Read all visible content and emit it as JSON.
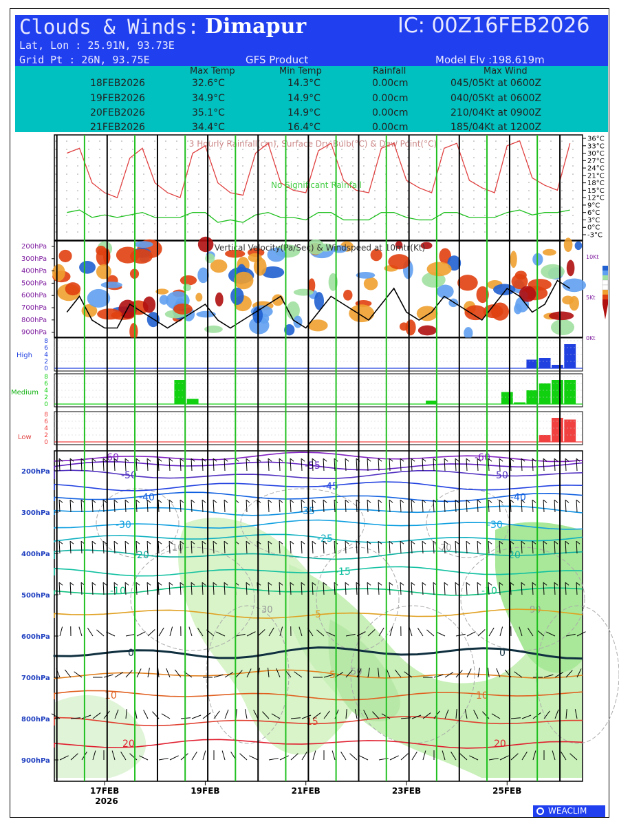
{
  "header": {
    "title_prefix": "Clouds & Winds:",
    "location": "Dimapur",
    "ic": "IC: 00Z16FEB2026",
    "latlon": "Lat, Lon : 25.91N, 93.73E",
    "grid": "Grid Pt   : 26N, 93.75E",
    "product": "GFS Product",
    "elevation": "Model Elv :198.619m"
  },
  "summary": {
    "columns": [
      "Max Temp",
      "Min Temp",
      "Rainfall",
      "Max Wind"
    ],
    "rows": [
      {
        "date": "18FEB2026",
        "max": "32.6°C",
        "min": "14.3°C",
        "rain": "0.00cm",
        "wind": "045/05Kt at 0600Z"
      },
      {
        "date": "19FEB2026",
        "max": "34.9°C",
        "min": "14.9°C",
        "rain": "0.00cm",
        "wind": "040/05Kt at 0600Z"
      },
      {
        "date": "20FEB2026",
        "max": "35.1°C",
        "min": "14.9°C",
        "rain": "0.00cm",
        "wind": "210/04Kt at 0900Z"
      },
      {
        "date": "21FEB2026",
        "max": "34.4°C",
        "min": "16.4°C",
        "rain": "0.00cm",
        "wind": "185/04Kt at 1200Z"
      }
    ]
  },
  "chart_data": [
    {
      "type": "line",
      "title": "3 Hourly Rainfall(cm), Surface Dry Bulb(°C) & Dew Point(°C)",
      "note": "No Significant Rainfall",
      "yticks": [
        "36°C",
        "33°C",
        "30°C",
        "27°C",
        "24°C",
        "21°C",
        "18°C",
        "15°C",
        "12°C",
        "9°C",
        "6°C",
        "3°C",
        "0°C",
        "-3°C"
      ],
      "ylim": [
        -3,
        36
      ],
      "x_days": [
        16.25,
        16.5,
        16.75,
        17,
        17.25,
        17.5,
        17.75,
        18,
        18.25,
        18.5,
        18.75,
        19,
        19.25,
        19.5,
        19.75,
        20,
        20.25,
        20.5,
        20.75,
        21,
        21.25,
        21.5,
        21.75,
        22,
        22.25,
        22.5,
        22.75,
        23,
        23.25,
        23.5,
        23.75,
        24,
        24.25,
        24.5,
        24.75,
        25,
        25.25,
        25.5,
        25.75,
        26,
        26.25
      ],
      "series": [
        {
          "name": "Dry Bulb",
          "color": "#e04040",
          "values": [
            30,
            32,
            18,
            14,
            12,
            28,
            32,
            18,
            14,
            12,
            30,
            33,
            18,
            14,
            13,
            30,
            34,
            18,
            15,
            14,
            31,
            34,
            19,
            15,
            14,
            32,
            34,
            19,
            16,
            14,
            32,
            34,
            19,
            16,
            14,
            33,
            35,
            20,
            17,
            15,
            34
          ]
        },
        {
          "name": "Dew Point",
          "color": "#20c020",
          "values": [
            6,
            7,
            4,
            5,
            4,
            5,
            6,
            4,
            4,
            4,
            6,
            6,
            2,
            3,
            2,
            5,
            6,
            4,
            4,
            3,
            6,
            6,
            3,
            3,
            3,
            6,
            6,
            4,
            3,
            3,
            6,
            6,
            4,
            4,
            4,
            6,
            7,
            5,
            6,
            6,
            7
          ]
        }
      ]
    },
    {
      "type": "heatmap",
      "title": "Vertical Velocity(Pa/Sec) & Windspeed at 10mtr(Kt)",
      "yticks": [
        "200hPa",
        "300hPa",
        "400hPa",
        "500hPa",
        "600hPa",
        "700hPa",
        "800hPa",
        "900hPa"
      ],
      "right_ticks": [
        "10Kt",
        "5Kt",
        "0Kt"
      ],
      "windspeed_kt": [
        3,
        5,
        2,
        1,
        1,
        4,
        3,
        2,
        1,
        2,
        3,
        4,
        2,
        1,
        2,
        3,
        4,
        5,
        2,
        1,
        3,
        5,
        4,
        3,
        2,
        4,
        6,
        3,
        2,
        3,
        5,
        4,
        3,
        2,
        4,
        6,
        5,
        3,
        4,
        7,
        6
      ]
    },
    {
      "type": "bar",
      "title": "High",
      "color": "#2040e0",
      "yticks": [
        "8",
        "6",
        "4",
        "2",
        "0"
      ],
      "ylim": [
        0,
        8
      ],
      "values": [
        0,
        0,
        0,
        0,
        0,
        0,
        0,
        0,
        0,
        0,
        0,
        0,
        0,
        0,
        0,
        0,
        0,
        0,
        0,
        0,
        0,
        0,
        0,
        0,
        0,
        0,
        0,
        0,
        0,
        0,
        0,
        0,
        0,
        0,
        0,
        0,
        0,
        2.5,
        3,
        1,
        7
      ]
    },
    {
      "type": "bar",
      "title": "Medium",
      "color": "#10d010",
      "yticks": [
        "8",
        "6",
        "4",
        "2",
        "0"
      ],
      "ylim": [
        0,
        8
      ],
      "values": [
        0,
        0,
        0,
        0,
        0,
        0,
        0,
        0,
        0,
        7,
        1.5,
        0,
        0,
        0,
        0,
        0,
        0,
        0,
        0,
        0,
        0,
        0,
        0,
        0,
        0,
        0,
        0,
        0,
        0,
        1,
        0,
        0,
        0,
        0,
        0,
        3.5,
        0.5,
        4,
        6,
        7,
        7
      ]
    },
    {
      "type": "bar",
      "title": "Low",
      "color": "#f04040",
      "yticks": [
        "8",
        "6",
        "4",
        "2",
        "0"
      ],
      "ylim": [
        0,
        8
      ],
      "values": [
        0,
        0,
        0,
        0,
        0,
        0,
        0,
        0,
        0,
        0,
        0,
        0,
        0,
        0,
        0,
        0,
        0,
        0,
        0,
        0,
        0,
        0,
        0,
        0,
        0,
        0,
        0,
        0,
        0,
        0,
        0,
        0,
        0,
        0,
        0,
        0,
        0,
        0,
        2,
        7,
        6.5
      ]
    },
    {
      "type": "contour",
      "title": "Temperature (°C), Relative Humidity & Winds",
      "yticks": [
        "200hPa",
        "300hPa",
        "400hPa",
        "500hPa",
        "600hPa",
        "700hPa",
        "800hPa",
        "900hPa"
      ],
      "xticks": [
        "17FEB",
        "19FEB",
        "21FEB",
        "23FEB",
        "25FEB"
      ],
      "year": "2026",
      "isotherms": [
        {
          "label": "-60",
          "color": "#8020c0"
        },
        {
          "label": "-55",
          "color": "#6020c0"
        },
        {
          "label": "-50",
          "color": "#5030c0"
        },
        {
          "label": "-45",
          "color": "#2040e0"
        },
        {
          "label": "-40",
          "color": "#1060e0"
        },
        {
          "label": "-35",
          "color": "#1090e0"
        },
        {
          "label": "-30",
          "color": "#10a0e0"
        },
        {
          "label": "-25",
          "color": "#10b0c0"
        },
        {
          "label": "-20",
          "color": "#10b0a0"
        },
        {
          "label": "-15",
          "color": "#10c0a0"
        },
        {
          "label": "-10",
          "color": "#10c080"
        },
        {
          "label": "-5",
          "color": "#e0a020"
        },
        {
          "label": "0",
          "color": "#103040"
        },
        {
          "label": "5",
          "color": "#e08020"
        },
        {
          "label": "10",
          "color": "#e06020"
        },
        {
          "label": "15",
          "color": "#e04030"
        },
        {
          "label": "20",
          "color": "#e02030"
        }
      ],
      "rh_labels": [
        "10",
        "30",
        "50",
        "70",
        "90"
      ]
    }
  ],
  "logo": "WEACLIM"
}
